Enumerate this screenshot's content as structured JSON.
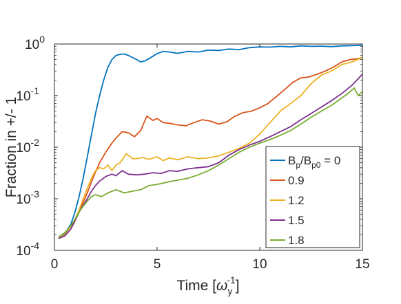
{
  "chart_data": {
    "type": "line",
    "xlabel": "Time [ω_y^-1]",
    "xlabel_parts": {
      "base": "Time [",
      "symbol": "ω",
      "sub": "y",
      "sup": "-1",
      "close": "]"
    },
    "ylabel": "Fraction in +/- 1",
    "xlim": [
      0,
      15
    ],
    "ylim": [
      0.0001,
      1
    ],
    "yscale": "log",
    "x_ticks": [
      "0",
      "5",
      "10",
      "15"
    ],
    "y_ticks": [
      {
        "base": "10",
        "exp": "-4"
      },
      {
        "base": "10",
        "exp": "-3"
      },
      {
        "base": "10",
        "exp": "-2"
      },
      {
        "base": "10",
        "exp": "-1"
      },
      {
        "base": "10",
        "exp": "0"
      }
    ],
    "grid": false,
    "legend_position": "bottom-right",
    "legend_title_parts": {
      "b1": "B",
      "s1": "p",
      "slash": "/B",
      "s2": "p0",
      "tail": " = 0"
    },
    "series": [
      {
        "name": "B_p/B_p0 = 0",
        "color": "#0072BD",
        "x": [
          0.2,
          0.5,
          0.8,
          1.0,
          1.2,
          1.4,
          1.6,
          1.8,
          2.0,
          2.2,
          2.4,
          2.6,
          2.8,
          3.0,
          3.2,
          3.4,
          3.6,
          3.8,
          4.0,
          4.2,
          4.4,
          4.6,
          4.8,
          5.0,
          5.3,
          5.6,
          6.0,
          6.5,
          7.0,
          7.5,
          8.0,
          8.5,
          9.0,
          9.5,
          10.0,
          10.5,
          11.0,
          11.5,
          12.0,
          12.5,
          13.0,
          13.5,
          14.0,
          14.5,
          15.0
        ],
        "y": [
          0.00018,
          0.00021,
          0.00032,
          0.00055,
          0.0011,
          0.0025,
          0.0065,
          0.017,
          0.045,
          0.1,
          0.2,
          0.35,
          0.5,
          0.6,
          0.63,
          0.64,
          0.6,
          0.55,
          0.5,
          0.45,
          0.47,
          0.52,
          0.58,
          0.65,
          0.72,
          0.7,
          0.66,
          0.72,
          0.7,
          0.76,
          0.75,
          0.8,
          0.78,
          0.85,
          0.88,
          0.87,
          0.9,
          0.88,
          0.92,
          0.9,
          0.91,
          0.89,
          0.92,
          0.93,
          0.95
        ]
      },
      {
        "name": "0.9",
        "color": "#D95319",
        "x": [
          0.2,
          0.5,
          0.8,
          1.0,
          1.2,
          1.4,
          1.6,
          1.8,
          2.0,
          2.2,
          2.5,
          2.8,
          3.0,
          3.3,
          3.6,
          3.9,
          4.2,
          4.5,
          4.8,
          5.0,
          5.3,
          5.6,
          6.0,
          6.4,
          6.8,
          7.2,
          7.6,
          8.0,
          8.4,
          8.8,
          9.2,
          9.6,
          10.0,
          10.4,
          10.8,
          11.2,
          11.6,
          12.0,
          12.4,
          12.8,
          13.2,
          13.6,
          14.0,
          14.4,
          14.8,
          15.0
        ],
        "y": [
          0.00017,
          0.00019,
          0.00026,
          0.00037,
          0.00055,
          0.00085,
          0.0013,
          0.0021,
          0.0033,
          0.005,
          0.008,
          0.012,
          0.015,
          0.02,
          0.019,
          0.016,
          0.021,
          0.04,
          0.033,
          0.036,
          0.03,
          0.029,
          0.027,
          0.026,
          0.03,
          0.034,
          0.032,
          0.028,
          0.031,
          0.04,
          0.047,
          0.05,
          0.058,
          0.07,
          0.095,
          0.13,
          0.18,
          0.22,
          0.23,
          0.26,
          0.3,
          0.36,
          0.45,
          0.5,
          0.52,
          0.55
        ]
      },
      {
        "name": "1.2",
        "color": "#EDB120",
        "x": [
          0.2,
          0.5,
          0.8,
          1.0,
          1.2,
          1.4,
          1.6,
          1.8,
          2.0,
          2.2,
          2.4,
          2.6,
          2.8,
          3.0,
          3.2,
          3.5,
          3.8,
          4.0,
          4.3,
          4.6,
          5.0,
          5.3,
          5.6,
          6.0,
          6.5,
          7.0,
          7.5,
          8.0,
          8.5,
          9.0,
          9.5,
          10.0,
          10.5,
          11.0,
          11.5,
          12.0,
          12.5,
          13.0,
          13.5,
          14.0,
          14.5,
          15.0
        ],
        "y": [
          0.00017,
          0.0002,
          0.00027,
          0.0004,
          0.0006,
          0.001,
          0.0016,
          0.0025,
          0.0035,
          0.004,
          0.0038,
          0.0045,
          0.0035,
          0.0045,
          0.005,
          0.0075,
          0.006,
          0.006,
          0.0063,
          0.0058,
          0.0065,
          0.0055,
          0.0062,
          0.0057,
          0.0065,
          0.006,
          0.0062,
          0.0068,
          0.008,
          0.0095,
          0.012,
          0.018,
          0.03,
          0.05,
          0.07,
          0.1,
          0.17,
          0.25,
          0.3,
          0.4,
          0.45,
          0.55
        ]
      },
      {
        "name": "1.5",
        "color": "#7E2F8E",
        "x": [
          0.2,
          0.5,
          0.8,
          1.0,
          1.2,
          1.4,
          1.6,
          1.8,
          2.0,
          2.2,
          2.5,
          2.8,
          3.0,
          3.3,
          3.6,
          4.0,
          4.4,
          4.8,
          5.2,
          5.6,
          6.0,
          6.5,
          7.0,
          7.5,
          8.0,
          8.5,
          9.0,
          9.5,
          10.0,
          10.5,
          11.0,
          11.5,
          12.0,
          12.5,
          13.0,
          13.5,
          14.0,
          14.5,
          15.0
        ],
        "y": [
          0.00017,
          0.00019,
          0.00026,
          0.00038,
          0.00055,
          0.00075,
          0.001,
          0.0014,
          0.0018,
          0.0022,
          0.0027,
          0.003,
          0.0028,
          0.0035,
          0.003,
          0.0029,
          0.003,
          0.0032,
          0.0031,
          0.0035,
          0.0034,
          0.0038,
          0.004,
          0.0042,
          0.005,
          0.007,
          0.009,
          0.011,
          0.013,
          0.016,
          0.02,
          0.025,
          0.034,
          0.045,
          0.06,
          0.08,
          0.11,
          0.16,
          0.26
        ]
      },
      {
        "name": "1.8",
        "color": "#77AC30",
        "x": [
          0.2,
          0.5,
          0.8,
          1.0,
          1.2,
          1.4,
          1.6,
          1.8,
          2.0,
          2.3,
          2.6,
          3.0,
          3.4,
          3.8,
          4.2,
          4.6,
          5.0,
          5.5,
          6.0,
          6.5,
          7.0,
          7.5,
          8.0,
          8.5,
          9.0,
          9.5,
          10.0,
          10.5,
          11.0,
          11.5,
          12.0,
          12.5,
          13.0,
          13.5,
          14.0,
          14.3,
          14.6,
          14.8,
          15.0
        ],
        "y": [
          0.00018,
          0.00022,
          0.0003,
          0.0004,
          0.00055,
          0.00072,
          0.0009,
          0.0011,
          0.0012,
          0.0011,
          0.0013,
          0.0015,
          0.0013,
          0.0014,
          0.0015,
          0.0018,
          0.0019,
          0.0021,
          0.0023,
          0.0025,
          0.0029,
          0.0035,
          0.0045,
          0.006,
          0.008,
          0.01,
          0.012,
          0.014,
          0.017,
          0.021,
          0.028,
          0.038,
          0.05,
          0.065,
          0.09,
          0.11,
          0.14,
          0.1,
          0.12
        ]
      }
    ]
  }
}
